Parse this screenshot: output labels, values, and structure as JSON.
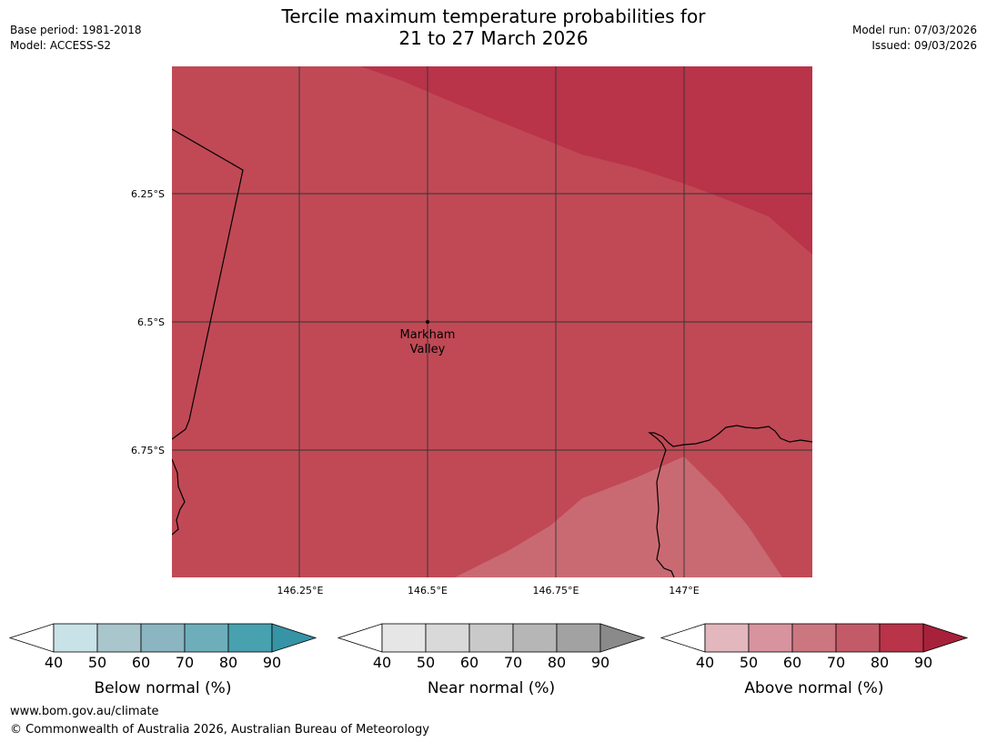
{
  "header": {
    "title_line1": "Tercile maximum temperature probabilities for",
    "title_line2": "21 to 27 March 2026",
    "base_period": "Base period: 1981-2018",
    "model": "Model: ACCESS-S2",
    "model_run": "Model run: 07/03/2026",
    "issued": "Issued: 09/03/2026"
  },
  "map": {
    "lat_labels": [
      "6.25°S",
      "6.5°S",
      "6.75°S"
    ],
    "lon_labels": [
      "146.25°E",
      "146.5°E",
      "146.75°E",
      "147°E"
    ],
    "place": {
      "name_line1": "Markham",
      "name_line2": "Valley"
    },
    "colors": {
      "above_70_80": "#c04955",
      "above_80_90": "#b93349",
      "above_60_70": "#c96a73",
      "coastline": "#000000",
      "grid": "#333333"
    }
  },
  "colorbars": [
    {
      "name": "below",
      "title": "Below normal (%)",
      "ticks": [
        "40",
        "50",
        "60",
        "70",
        "80",
        "90"
      ],
      "colors": [
        "#ffffff",
        "#c9e2e7",
        "#a8c6cb",
        "#8ab5c1",
        "#6eaebb",
        "#48a1af",
        "#3694a6"
      ]
    },
    {
      "name": "near",
      "title": "Near normal (%)",
      "ticks": [
        "40",
        "50",
        "60",
        "70",
        "80",
        "90"
      ],
      "colors": [
        "#ffffff",
        "#e6e6e6",
        "#d9d9d9",
        "#c9c9c9",
        "#b6b6b6",
        "#a2a2a2",
        "#8a8a8a"
      ]
    },
    {
      "name": "above",
      "title": "Above normal (%)",
      "ticks": [
        "40",
        "50",
        "60",
        "70",
        "80",
        "90"
      ],
      "colors": [
        "#ffffff",
        "#e2b7bd",
        "#d8949e",
        "#cc7680",
        "#c35a68",
        "#b93349",
        "#a8213b"
      ]
    }
  ],
  "footer": {
    "url": "www.bom.gov.au/climate",
    "copyright": "© Commonwealth of Australia 2026, Australian Bureau of Meteorology"
  }
}
